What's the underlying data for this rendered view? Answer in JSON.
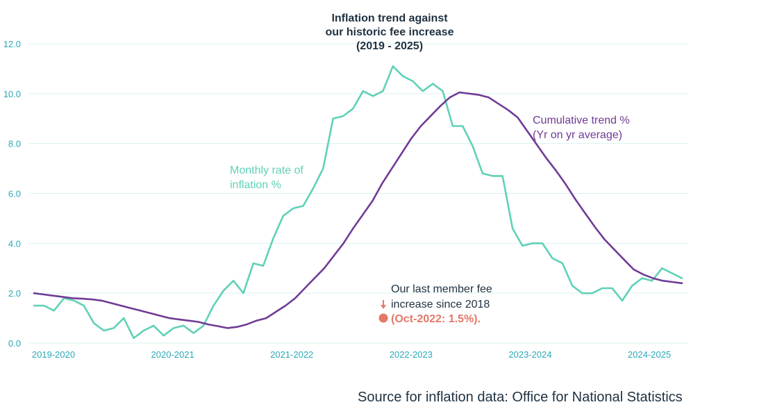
{
  "chart_data": {
    "type": "line",
    "title_lines": [
      "Inflation trend against",
      "our historic fee increase",
      "(2019 - 2025)"
    ],
    "ylim": [
      0,
      12
    ],
    "yticks": [
      "0.0",
      "2.0",
      "4.0",
      "6.0",
      "8.0",
      "10.0",
      "12.0"
    ],
    "x_labels": [
      "2019-2020",
      "2020-2021",
      "2021-2022",
      "2022-2023",
      "2023-2024",
      "2024-2025"
    ],
    "grid": true,
    "series": [
      {
        "name_lines": [
          "Monthly rate of",
          "inflation %"
        ],
        "color": "#5fd1b8",
        "values": [
          1.5,
          1.5,
          1.3,
          1.8,
          1.7,
          1.5,
          0.8,
          0.5,
          0.6,
          1.0,
          0.2,
          0.5,
          0.7,
          0.3,
          0.6,
          0.7,
          0.4,
          0.7,
          1.5,
          2.1,
          2.5,
          2.0,
          3.2,
          3.1,
          4.2,
          5.1,
          5.4,
          5.5,
          6.2,
          7.0,
          9.0,
          9.1,
          9.4,
          10.1,
          9.9,
          10.1,
          11.1,
          10.7,
          10.5,
          10.1,
          10.4,
          10.1,
          8.7,
          8.7,
          7.9,
          6.8,
          6.7,
          6.7,
          4.6,
          3.9,
          4.0,
          4.0,
          3.4,
          3.2,
          2.3,
          2.0,
          2.0,
          2.2,
          2.2,
          1.7,
          2.3,
          2.6,
          2.5,
          3.0,
          2.8,
          2.6
        ]
      },
      {
        "name_lines": [
          "Cumulative trend %",
          "(Yr on yr average)"
        ],
        "color": "#6f3b96",
        "values": [
          2.0,
          1.95,
          1.9,
          1.85,
          1.8,
          1.78,
          1.75,
          1.7,
          1.6,
          1.5,
          1.4,
          1.3,
          1.2,
          1.1,
          1.0,
          0.95,
          0.9,
          0.85,
          0.75,
          0.68,
          0.6,
          0.65,
          0.75,
          0.9,
          1.0,
          1.25,
          1.5,
          1.8,
          2.2,
          2.6,
          3.0,
          3.5,
          4.0,
          4.6,
          5.15,
          5.7,
          6.4,
          7.0,
          7.6,
          8.2,
          8.7,
          9.1,
          9.5,
          9.85,
          10.05,
          10.0,
          9.95,
          9.85,
          9.6,
          9.35,
          9.05,
          8.5,
          7.95,
          7.4,
          6.9,
          6.35,
          5.75,
          5.2,
          4.65,
          4.15,
          3.75,
          3.35,
          2.95,
          2.75,
          2.6,
          2.5,
          2.45,
          2.4
        ]
      }
    ],
    "annotation": {
      "lines": [
        "Our last member fee",
        "increase since 2018"
      ],
      "value_label": "(Oct-2022: 1.5%).",
      "x": "Oct-2022",
      "y": 1.5,
      "color": "#e47868"
    }
  },
  "source": "Source for inflation data: Office for National Statistics"
}
